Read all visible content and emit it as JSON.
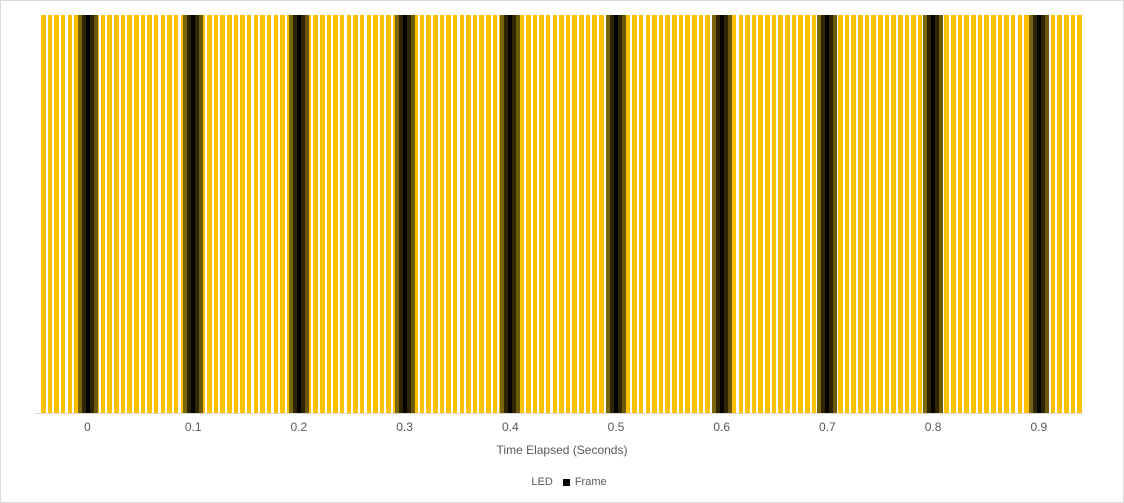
{
  "chart_data": {
    "type": "bar",
    "title": "",
    "xlabel": "Time Elapsed (Seconds)",
    "ylabel": "",
    "x_ticks": [
      "0",
      "0.1",
      "0.2",
      "0.3",
      "0.4",
      "0.5",
      "0.6",
      "0.7",
      "0.8",
      "0.9"
    ],
    "ylim": [
      0,
      1
    ],
    "y_axis_visible": false,
    "grid": false,
    "legend_position": "bottom",
    "axis_line_color": "#d9d9d9",
    "axis_text_color": "#595959",
    "series": [
      {
        "name": "LED",
        "color": "#FFC000",
        "legend_marker_color": "#FFFFFF",
        "n_bars": 157,
        "bar_value": 1,
        "note_values": "all LED bars at full height (value 1) across entire x range"
      },
      {
        "name": "Frame",
        "color": "#000000",
        "legend_marker_color": "#000000",
        "x_values_seconds": [
          0,
          0.1,
          0.2,
          0.3,
          0.4,
          0.5,
          0.6,
          0.7,
          0.8,
          0.9
        ],
        "bar_value": 1,
        "overlap_gradient": [
          "#79650A",
          "#2E2602",
          "#040300",
          "#2E2602",
          "#6B5808"
        ]
      }
    ]
  }
}
